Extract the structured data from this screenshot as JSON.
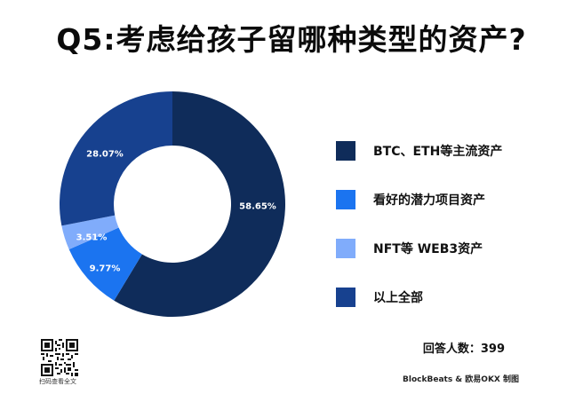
{
  "header": {
    "title": "Q5:考虑给孩子留哪种类型的资产?"
  },
  "chart_data": {
    "type": "pie",
    "variant": "donut",
    "title": "Q5:考虑给孩子留哪种类型的资产?",
    "categories": [
      "BTC、ETH等主流资产",
      "看好的潜力项目资产",
      "NFT等 WEB3资产",
      "以上全部"
    ],
    "values": [
      58.65,
      9.77,
      3.51,
      28.07
    ],
    "unit": "%",
    "colors": [
      "#0f2c5a",
      "#1b74f0",
      "#80acfb",
      "#17418f"
    ],
    "data_labels": [
      "58.65%",
      "9.77%",
      "3.51%",
      "28.07%"
    ],
    "start_angle": "12 o'clock, clockwise",
    "legend_position": "right",
    "respondents": 399
  },
  "legend": {
    "items": [
      {
        "label": "BTC、ETH等主流资产",
        "color": "#0f2c5a"
      },
      {
        "label": "看好的潜力项目资产",
        "color": "#1b74f0"
      },
      {
        "label": "NFT等 WEB3资产",
        "color": "#80acfb"
      },
      {
        "label": "以上全部",
        "color": "#17418f"
      }
    ]
  },
  "footer": {
    "respondents_label": "回答人数：399",
    "credit": "BlockBeats & 欧易OKX 制图",
    "qr_caption": "扫码查看全文"
  }
}
